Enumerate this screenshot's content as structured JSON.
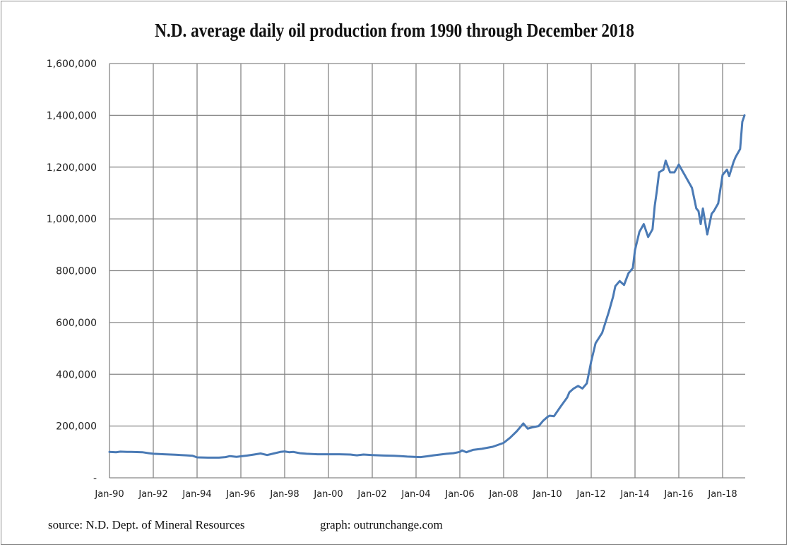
{
  "chart_data": {
    "type": "line",
    "title": "N.D. average daily oil production from 1990 through December 2018",
    "xlabel": "",
    "ylabel": "",
    "ylim": [
      0,
      1600000
    ],
    "xlim": [
      1990.0,
      2019.0
    ],
    "grid": true,
    "legend": "none",
    "y_ticks": [
      0,
      200000,
      400000,
      600000,
      800000,
      1000000,
      1200000,
      1400000,
      1600000
    ],
    "y_tick_labels": [
      "-",
      "200,000",
      "400,000",
      "600,000",
      "800,000",
      "1,000,000",
      "1,200,000",
      "1,400,000",
      "1,600,000"
    ],
    "x_tick_labels": [
      "Jan-90",
      "Jan-92",
      "Jan-94",
      "Jan-96",
      "Jan-98",
      "Jan-00",
      "Jan-02",
      "Jan-04",
      "Jan-06",
      "Jan-08",
      "Jan-10",
      "Jan-12",
      "Jan-14",
      "Jan-16",
      "Jan-18"
    ],
    "x_tick_years": [
      1990,
      1992,
      1994,
      1996,
      1998,
      2000,
      2002,
      2004,
      2006,
      2008,
      2010,
      2012,
      2014,
      2016,
      2018
    ],
    "series": [
      {
        "name": "Average daily oil production",
        "color": "#4a7ab5",
        "x": [
          1990.0,
          1990.3,
          1990.5,
          1990.8,
          1991.0,
          1991.5,
          1991.8,
          1992.0,
          1992.5,
          1993.0,
          1993.5,
          1993.8,
          1994.0,
          1994.5,
          1995.0,
          1995.3,
          1995.5,
          1995.8,
          1996.0,
          1996.3,
          1996.6,
          1996.9,
          1997.2,
          1997.5,
          1997.8,
          1998.0,
          1998.2,
          1998.4,
          1998.7,
          1999.0,
          1999.5,
          2000.0,
          2000.5,
          2001.0,
          2001.3,
          2001.6,
          2002.0,
          2002.5,
          2003.0,
          2003.3,
          2003.6,
          2003.9,
          2004.2,
          2004.5,
          2004.8,
          2005.1,
          2005.4,
          2005.7,
          2006.0,
          2006.1,
          2006.3,
          2006.6,
          2007.0,
          2007.5,
          2008.0,
          2008.3,
          2008.6,
          2008.9,
          2009.1,
          2009.3,
          2009.6,
          2009.8,
          2010.0,
          2010.1,
          2010.3,
          2010.6,
          2010.9,
          2011.0,
          2011.2,
          2011.4,
          2011.6,
          2011.8,
          2012.0,
          2012.2,
          2012.5,
          2012.8,
          2012.9,
          2013.0,
          2013.1,
          2013.3,
          2013.5,
          2013.7,
          2013.9,
          2014.0,
          2014.2,
          2014.4,
          2014.6,
          2014.8,
          2014.9,
          2015.0,
          2015.1,
          2015.3,
          2015.4,
          2015.6,
          2015.8,
          2016.0,
          2016.2,
          2016.4,
          2016.6,
          2016.8,
          2016.9,
          2017.0,
          2017.1,
          2017.3,
          2017.5,
          2017.6,
          2017.8,
          2018.0,
          2018.2,
          2018.3,
          2018.5,
          2018.6,
          2018.8,
          2018.9,
          2019.0
        ],
        "values": [
          100000,
          99000,
          101000,
          100000,
          100000,
          99000,
          95000,
          93000,
          91000,
          89000,
          87000,
          85000,
          79000,
          78000,
          78000,
          80000,
          84000,
          81000,
          83000,
          86000,
          90000,
          94000,
          88000,
          94000,
          100000,
          102000,
          99000,
          100000,
          95000,
          93000,
          91000,
          91000,
          91000,
          90000,
          87000,
          90000,
          88000,
          86000,
          85000,
          84000,
          82000,
          81000,
          80000,
          83000,
          87000,
          90000,
          93000,
          95000,
          100000,
          106000,
          99000,
          108000,
          112000,
          120000,
          135000,
          155000,
          180000,
          210000,
          190000,
          195000,
          200000,
          220000,
          235000,
          240000,
          238000,
          275000,
          310000,
          330000,
          345000,
          355000,
          345000,
          365000,
          450000,
          520000,
          560000,
          640000,
          670000,
          700000,
          740000,
          760000,
          745000,
          790000,
          810000,
          880000,
          950000,
          980000,
          930000,
          960000,
          1050000,
          1110000,
          1180000,
          1190000,
          1225000,
          1180000,
          1180000,
          1210000,
          1180000,
          1150000,
          1120000,
          1040000,
          1030000,
          980000,
          1040000,
          940000,
          1020000,
          1030000,
          1060000,
          1170000,
          1190000,
          1165000,
          1220000,
          1240000,
          1270000,
          1375000,
          1400000
        ]
      }
    ]
  },
  "footer": {
    "source": "source: N.D. Dept. of Mineral Resources",
    "graph": "graph:  outrunchange.com"
  }
}
